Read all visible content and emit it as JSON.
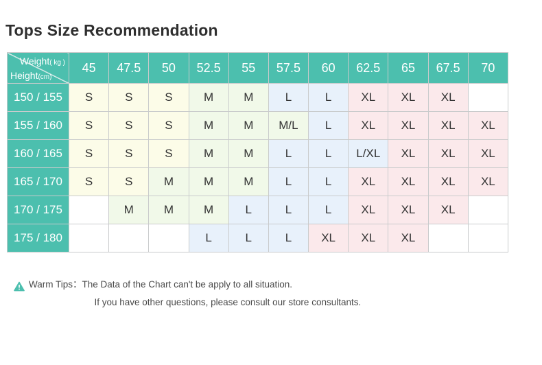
{
  "page": {
    "title": "Tops Size Recommendation"
  },
  "chart_data": {
    "type": "table",
    "title": "Tops Size Recommendation",
    "columns_axis_label": "Weight (kg)",
    "rows_axis_label": "Height (cm)",
    "corner": {
      "weight_label": "Weight",
      "weight_unit": "( kg )",
      "height_label": "Height",
      "height_unit": "(cm)"
    },
    "weight_columns": [
      "45",
      "47.5",
      "50",
      "52.5",
      "55",
      "57.5",
      "60",
      "62.5",
      "65",
      "67.5",
      "70"
    ],
    "height_rows": [
      "150 / 155",
      "155 / 160",
      "160 / 165",
      "165 / 170",
      "170 / 175",
      "175 / 180"
    ],
    "values": [
      [
        "S",
        "S",
        "S",
        "M",
        "M",
        "L",
        "L",
        "XL",
        "XL",
        "XL",
        ""
      ],
      [
        "S",
        "S",
        "S",
        "M",
        "M",
        "M/L",
        "L",
        "XL",
        "XL",
        "XL",
        "XL"
      ],
      [
        "S",
        "S",
        "S",
        "M",
        "M",
        "L",
        "L",
        "L/XL",
        "XL",
        "XL",
        "XL"
      ],
      [
        "S",
        "S",
        "M",
        "M",
        "M",
        "L",
        "L",
        "XL",
        "XL",
        "XL",
        "XL"
      ],
      [
        "",
        "M",
        "M",
        "M",
        "L",
        "L",
        "L",
        "XL",
        "XL",
        "XL",
        ""
      ],
      [
        "",
        "",
        "",
        "L",
        "L",
        "L",
        "XL",
        "XL",
        "XL",
        "",
        ""
      ]
    ],
    "colors": {
      "header_bg": "#4CBFAE",
      "header_text": "#FFFFFF",
      "grid_line": "#C9CBCC",
      "cell_text": "#333333",
      "S": "#FCFCE8",
      "M": "#F1F9E9",
      "M/L": "#F1F9E9",
      "L": "#E8F1FB",
      "L/XL": "#E8F1FB",
      "XL": "#FBE9EB",
      "empty": "#FFFFFF"
    }
  },
  "tips": {
    "label": "Warm Tips：",
    "line1": "The Data of the Chart can't be apply to all situation.",
    "line2": "If you have other questions, please consult our store consultants.",
    "icon_color": "#4CBFAE"
  }
}
